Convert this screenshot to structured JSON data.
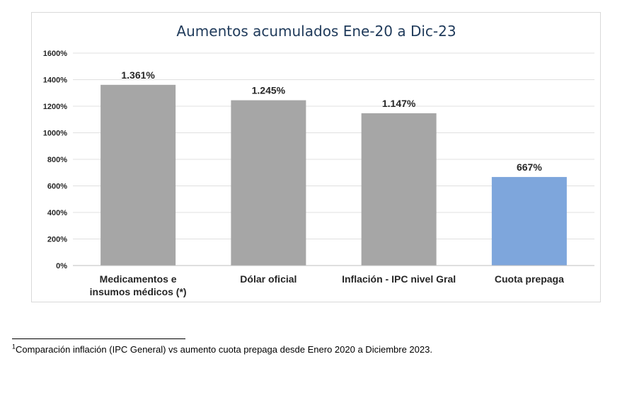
{
  "chart_data": {
    "type": "bar",
    "title": "Aumentos acumulados Ene-20 a Dic-23",
    "categories": [
      [
        "Medicamentos e",
        "insumos médicos (*)"
      ],
      [
        "Dólar oficial"
      ],
      [
        "Inflación - IPC nivel Gral"
      ],
      [
        "Cuota prepaga"
      ]
    ],
    "values": [
      1361,
      1245,
      1147,
      667
    ],
    "value_labels": [
      "1.361%",
      "1.245%",
      "1.147%",
      "667%"
    ],
    "bar_colors": [
      "#a6a6a6",
      "#a6a6a6",
      "#a6a6a6",
      "#7ea6dc"
    ],
    "ylim": [
      0,
      1600
    ],
    "yticks": [
      0,
      200,
      400,
      600,
      800,
      1000,
      1200,
      1400,
      1600
    ],
    "ytick_labels": [
      "0%",
      "200%",
      "400%",
      "600%",
      "800%",
      "1000%",
      "1200%",
      "1400%",
      "1600%"
    ],
    "grid": true,
    "legend": "none",
    "colors": {
      "title": "#1f3a5a",
      "text": "#262626",
      "grid": "#e0e0e0",
      "axis": "#bfbfbf"
    }
  },
  "footnote": {
    "marker": "1",
    "text": "Comparación inflación (IPC General) vs aumento cuota prepaga desde Enero 2020 a Diciembre 2023."
  }
}
